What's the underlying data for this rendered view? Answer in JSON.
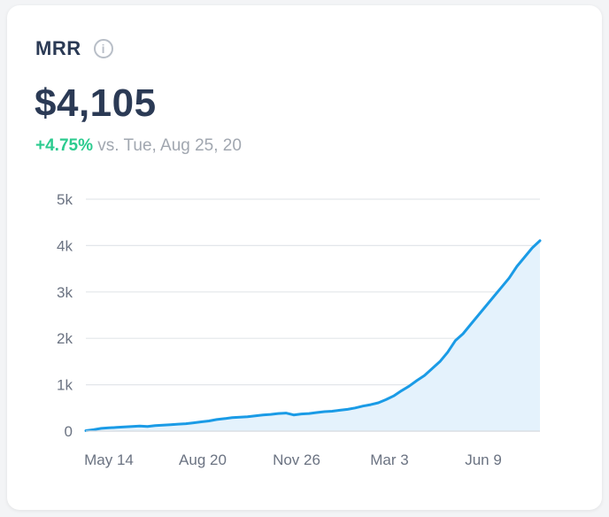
{
  "card": {
    "title": "MRR",
    "value": "$4,105",
    "change": "+4.75%",
    "comparison": "vs. Tue, Aug 25, 20"
  },
  "colors": {
    "line": "#1a9be6",
    "area": "#e4f2fc",
    "grid": "#e3e6ea",
    "positive": "#2ccb8f",
    "title": "#2b3a55",
    "muted": "#a1a7b0"
  },
  "icons": {
    "info": "info-icon"
  },
  "chart_data": {
    "type": "area",
    "title": "",
    "xlabel": "",
    "ylabel": "",
    "ylim": [
      0,
      5000
    ],
    "yticks": [
      0,
      1000,
      2000,
      3000,
      4000,
      5000
    ],
    "ytick_labels": [
      "0",
      "1k",
      "2k",
      "3k",
      "4k",
      "5k"
    ],
    "xtick_labels": [
      "May 14",
      "Aug 20",
      "Nov 26",
      "Mar 3",
      "Jun 9"
    ],
    "grid": true,
    "legend": "none",
    "series": [
      {
        "values": [
          10,
          30,
          60,
          70,
          80,
          90,
          100,
          110,
          100,
          120,
          130,
          140,
          150,
          160,
          180,
          200,
          220,
          250,
          270,
          290,
          300,
          310,
          330,
          350,
          360,
          380,
          390,
          350,
          370,
          380,
          400,
          420,
          430,
          450,
          470,
          500,
          540,
          570,
          610,
          680,
          760,
          870,
          970,
          1090,
          1200,
          1350,
          1500,
          1700,
          1950,
          2100,
          2300,
          2500,
          2700,
          2900,
          3100,
          3300,
          3550,
          3750,
          3950,
          4105
        ]
      }
    ]
  }
}
